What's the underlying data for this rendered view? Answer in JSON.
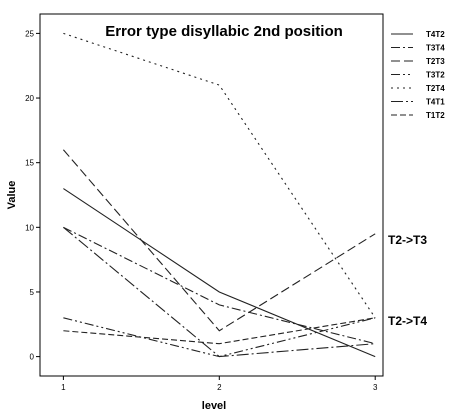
{
  "chart_data": {
    "type": "line",
    "title": "Error type disyllabic 2nd position",
    "xlabel": "level",
    "ylabel": "Value",
    "x": [
      1,
      2,
      3
    ],
    "x_ticks": [
      "1",
      "2",
      "3"
    ],
    "y_ticks": [
      "0",
      "5",
      "10",
      "15",
      "20",
      "25"
    ],
    "ylim": [
      -1.5,
      26.5
    ],
    "xlim": [
      0.85,
      3.05
    ],
    "grid": false,
    "legend_position": "right",
    "series": [
      {
        "name": "T4T2",
        "values": [
          13,
          5,
          0
        ],
        "dash": ""
      },
      {
        "name": "T3T4",
        "values": [
          10,
          4,
          1
        ],
        "dash": "9,3,2,3"
      },
      {
        "name": "T2T3",
        "values": [
          16,
          2,
          9.5
        ],
        "dash": "9,4"
      },
      {
        "name": "T3T2",
        "values": [
          3,
          0,
          3
        ],
        "dash": "9,3,2,3,2,3"
      },
      {
        "name": "T2T4",
        "values": [
          25,
          21,
          3
        ],
        "dash": "2,4"
      },
      {
        "name": "T4T1",
        "values": [
          10,
          0,
          1
        ],
        "dash": "12,3,2,3"
      },
      {
        "name": "T1T2",
        "values": [
          2,
          1,
          3
        ],
        "dash": "6,3"
      }
    ],
    "annotations": [
      "T2->T3",
      "T2->T4"
    ]
  }
}
